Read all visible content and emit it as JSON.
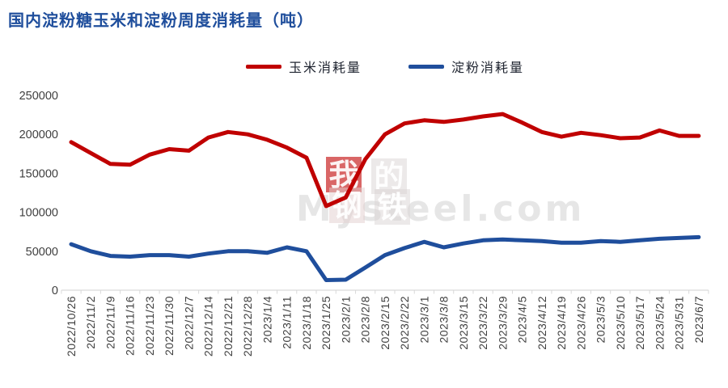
{
  "title": {
    "text": "国内淀粉糖玉米和淀粉周度消耗量（吨）",
    "color": "#1f4e9c"
  },
  "legend": {
    "items": [
      {
        "label": "玉米消耗量",
        "color": "#c00000"
      },
      {
        "label": "淀粉消耗量",
        "color": "#1f4e9c"
      }
    ]
  },
  "watermark": {
    "chars": [
      "我",
      "的",
      "钢",
      "铁"
    ],
    "brand": "Mysteel.com"
  },
  "colors": {
    "corn_line": "#c00000",
    "starch_line": "#1f4e9c",
    "axis_text": "#3f3f3f",
    "axis_line": "#d9d9d9",
    "title_text": "#1f4e9c"
  },
  "chart_data": {
    "type": "line",
    "title": "国内淀粉糖玉米和淀粉周度消耗量（吨）",
    "x": [
      "2022/10/26",
      "2022/11/2",
      "2022/11/9",
      "2022/11/16",
      "2022/11/23",
      "2022/11/30",
      "2022/12/7",
      "2022/12/14",
      "2022/12/21",
      "2022/12/28",
      "2023/1/4",
      "2023/1/11",
      "2023/1/18",
      "2023/1/25",
      "2023/2/1",
      "2023/2/8",
      "2023/2/15",
      "2023/2/22",
      "2023/3/1",
      "2023/3/8",
      "2023/3/15",
      "2023/3/22",
      "2023/3/29",
      "2023/4/5",
      "2023/4/12",
      "2023/4/19",
      "2023/4/26",
      "2023/5/3",
      "2023/5/10",
      "2023/5/17",
      "2023/5/24",
      "2023/5/31",
      "2023/6/7"
    ],
    "series": [
      {
        "name": "玉米消耗量",
        "color": "#c00000",
        "values": [
          190000,
          176000,
          162000,
          161000,
          174000,
          181000,
          179000,
          196000,
          203000,
          200000,
          193000,
          183000,
          170000,
          108000,
          119000,
          168000,
          200000,
          214000,
          218000,
          216000,
          219000,
          223000,
          226000,
          215000,
          203000,
          197000,
          202000,
          199000,
          195000,
          196000,
          205000,
          198000,
          198000
        ]
      },
      {
        "name": "淀粉消耗量",
        "color": "#1f4e9c",
        "values": [
          59000,
          50000,
          44000,
          43000,
          45000,
          45000,
          43000,
          47000,
          50000,
          50000,
          48000,
          55000,
          50000,
          13000,
          13500,
          29000,
          45000,
          54000,
          62000,
          55000,
          60000,
          64000,
          65000,
          64000,
          63000,
          61000,
          61000,
          63000,
          62000,
          64000,
          66000,
          67000,
          68000
        ]
      }
    ],
    "xlabel": "",
    "ylabel": "",
    "ylim": [
      0,
      250000
    ],
    "y_ticks": [
      0,
      50000,
      100000,
      150000,
      200000,
      250000
    ],
    "grid": false,
    "legend_position": "top-center",
    "x_label_rotation": 90
  }
}
